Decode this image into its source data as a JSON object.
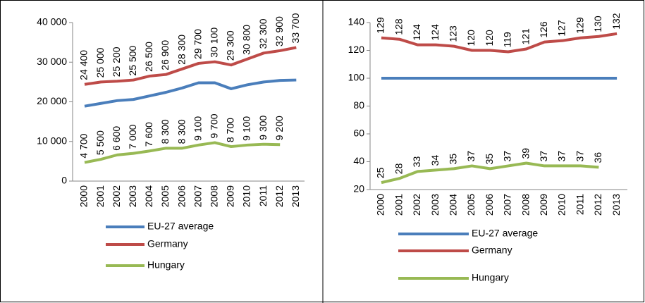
{
  "chart_data": [
    {
      "type": "line",
      "categories": [
        "2000",
        "2001",
        "2002",
        "2003",
        "2004",
        "2005",
        "2006",
        "2007",
        "2008",
        "2009",
        "2010",
        "2011",
        "2012",
        "2013"
      ],
      "ylim": [
        0,
        40000
      ],
      "yticks": [
        0,
        {
          "value": 10000,
          "label": "10 000"
        },
        {
          "value": 20000,
          "label": "20 000"
        },
        {
          "value": 30000,
          "label": "30 000"
        },
        {
          "value": 40000,
          "label": "40 000"
        }
      ],
      "series": [
        {
          "name": "EU-27 average",
          "color": "#4a7ebb",
          "values": [
            18900,
            19600,
            20300,
            20600,
            21500,
            22400,
            23500,
            24800,
            24800,
            23300,
            24300,
            25000,
            25400,
            25500
          ]
        },
        {
          "name": "Germany",
          "color": "#be4b48",
          "values": [
            24400,
            25000,
            25200,
            25500,
            26500,
            26900,
            28300,
            29700,
            30100,
            29300,
            30800,
            32300,
            32900,
            33700
          ],
          "value_labels": [
            "24 400",
            "25 000",
            "25 200",
            "25 500",
            "26 500",
            "26 900",
            "28 300",
            "29 700",
            "30 100",
            "29 300",
            "30 800",
            "32 300",
            "32 900",
            "33 700"
          ]
        },
        {
          "name": "Hungary",
          "color": "#98b954",
          "values": [
            4700,
            5500,
            6600,
            7000,
            7600,
            8300,
            8300,
            9100,
            9700,
            8700,
            9100,
            9300,
            9200,
            null
          ],
          "value_labels": [
            "4 700",
            "5 500",
            "6 600",
            "7 000",
            "7 600",
            "8 300",
            "8 300",
            "9 100",
            "9 700",
            "8 700",
            "9 100",
            "9 300",
            "9 200",
            null
          ]
        }
      ]
    },
    {
      "type": "line",
      "categories": [
        "2000",
        "2001",
        "2002",
        "2003",
        "2004",
        "2005",
        "2006",
        "2007",
        "2008",
        "2009",
        "2010",
        "2011",
        "2012",
        "2013"
      ],
      "ylim": [
        20,
        140
      ],
      "yticks": [
        20,
        40,
        60,
        80,
        100,
        120,
        140
      ],
      "series": [
        {
          "name": "EU-27 average",
          "color": "#4a7ebb",
          "values": [
            100,
            100,
            100,
            100,
            100,
            100,
            100,
            100,
            100,
            100,
            100,
            100,
            100,
            100
          ]
        },
        {
          "name": "Germany",
          "color": "#be4b48",
          "values": [
            129,
            128,
            124,
            124,
            123,
            120,
            120,
            119,
            121,
            126,
            127,
            129,
            130,
            132
          ],
          "show_labels": true
        },
        {
          "name": "Hungary",
          "color": "#98b954",
          "values": [
            25,
            28,
            33,
            34,
            35,
            37,
            35,
            37,
            39,
            37,
            37,
            37,
            36,
            null
          ],
          "show_labels": true
        }
      ]
    }
  ]
}
